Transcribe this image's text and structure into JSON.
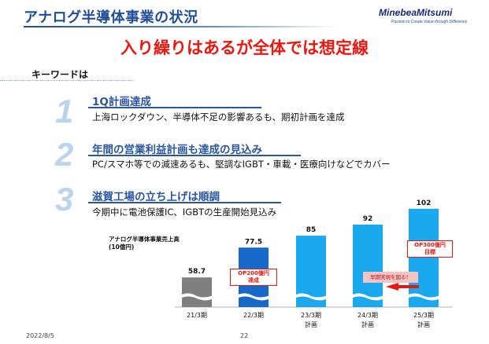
{
  "header": {
    "title": "アナログ半導体事業の状況",
    "logo": "MinebeaMitsumi",
    "logo_tagline": "Passion to Create Value through Difference"
  },
  "headline": "入り繰りはあるが全体では想定線",
  "keywords_label": "キーワードは",
  "items": [
    {
      "number": "1",
      "heading": "1Q計画達成",
      "body": "上海ロックダウン、半導体不足の影響あるも、期初計画を達成"
    },
    {
      "number": "2",
      "heading": "年間の営業利益計画も達成の見込み",
      "body": "PC/スマホ等での減速あるも、堅調なIGBT・車載・医療向けなどでカバー"
    },
    {
      "number": "3",
      "heading": "滋賀工場の立ち上げは順調",
      "body": "今期中に電池保護IC、IGBTの生産開始見込み"
    }
  ],
  "chart_data": {
    "type": "bar",
    "title": "アナログ半導体事業売上高",
    "unit": "(10億円)",
    "categories": [
      "21/3期",
      "22/3期",
      "23/3期",
      "24/3期",
      "25/3期"
    ],
    "category_sub": [
      "",
      "",
      "計画",
      "計画",
      "計画"
    ],
    "values": [
      58.7,
      77.5,
      85,
      92,
      102
    ],
    "value_labels": [
      "58.7",
      "77.5",
      "85",
      "92",
      "102"
    ],
    "colors": [
      "#7f7f7f",
      "#1668c9",
      "#1aa9ee",
      "#1aa9ee",
      "#1aa9ee"
    ],
    "axis_break": true,
    "callouts": [
      {
        "category": "22/3期",
        "text": [
          "OP200億円",
          "達成"
        ]
      },
      {
        "category": "25/3期",
        "text": [
          "OP300億円",
          "目標"
        ]
      }
    ],
    "arrow_label": "早期実現を図る！"
  },
  "footer": {
    "date": "2022/8/5",
    "page": "22"
  }
}
